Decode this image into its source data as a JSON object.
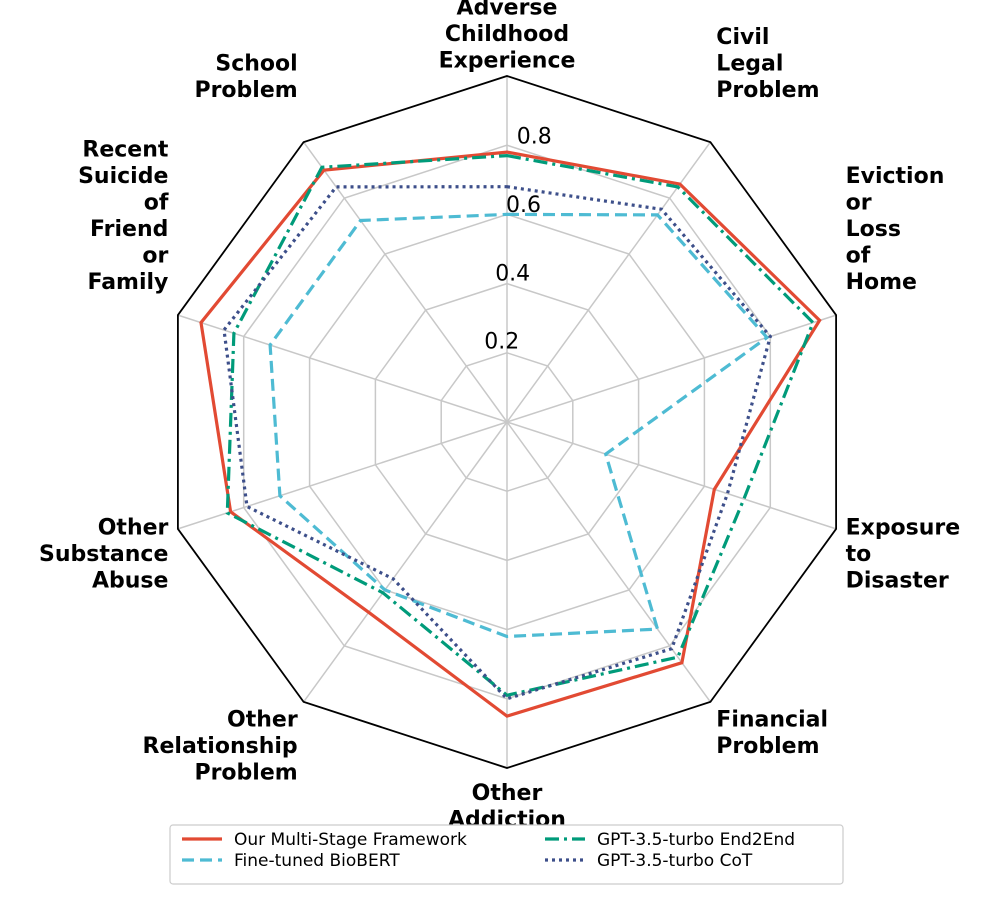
{
  "chart_data": {
    "type": "radar",
    "title": "",
    "categories": [
      "Adverse Childhood Experience",
      "Civil Legal Problem",
      "Eviction or Loss of Home",
      "Exposure to Disaster",
      "Financial Problem",
      "Other Addiction",
      "Other Relationship Problem",
      "Other Substance Abuse",
      "Recent Suicide of Friend or Family",
      "School Problem"
    ],
    "category_lines": [
      [
        "Adverse",
        "Childhood",
        "Experience"
      ],
      [
        "Civil",
        "Legal",
        "Problem"
      ],
      [
        "Eviction",
        "or",
        "Loss",
        "of",
        "Home"
      ],
      [
        "Exposure",
        "to",
        "Disaster"
      ],
      [
        "Financial",
        "Problem"
      ],
      [
        "Other",
        "Addiction"
      ],
      [
        "Other",
        "Relationship",
        "Problem"
      ],
      [
        "Other",
        "Substance",
        "Abuse"
      ],
      [
        "Recent",
        "Suicide",
        "of",
        "Friend",
        "or",
        "Family"
      ],
      [
        "School",
        "Problem"
      ]
    ],
    "rlim": [
      0,
      1.0
    ],
    "rticks": [
      0.2,
      0.4,
      0.6,
      0.8
    ],
    "rtick_labels": [
      "0.2",
      "0.4",
      "0.6",
      "0.8"
    ],
    "grid": true,
    "legend_position": "bottom",
    "series": [
      {
        "name": "Our Multi-Stage Framework",
        "color": "#e24a33",
        "dash": "solid",
        "values": [
          0.78,
          0.85,
          0.95,
          0.63,
          0.86,
          0.85,
          0.68,
          0.84,
          0.93,
          0.9
        ]
      },
      {
        "name": "Fine-tuned BioBERT",
        "color": "#4ebbd3",
        "dash": "dashed",
        "values": [
          0.6,
          0.74,
          0.79,
          0.3,
          0.74,
          0.62,
          0.6,
          0.69,
          0.72,
          0.72
        ]
      },
      {
        "name": "GPT-3.5-turbo End2End",
        "color": "#009b7a",
        "dash": "dashdot",
        "values": [
          0.77,
          0.84,
          0.93,
          0.72,
          0.84,
          0.79,
          0.61,
          0.85,
          0.83,
          0.91
        ]
      },
      {
        "name": "GPT-3.5-turbo CoT",
        "color": "#3d4f8a",
        "dash": "dotted",
        "values": [
          0.68,
          0.76,
          0.8,
          0.67,
          0.81,
          0.8,
          0.56,
          0.79,
          0.86,
          0.84
        ]
      }
    ]
  }
}
